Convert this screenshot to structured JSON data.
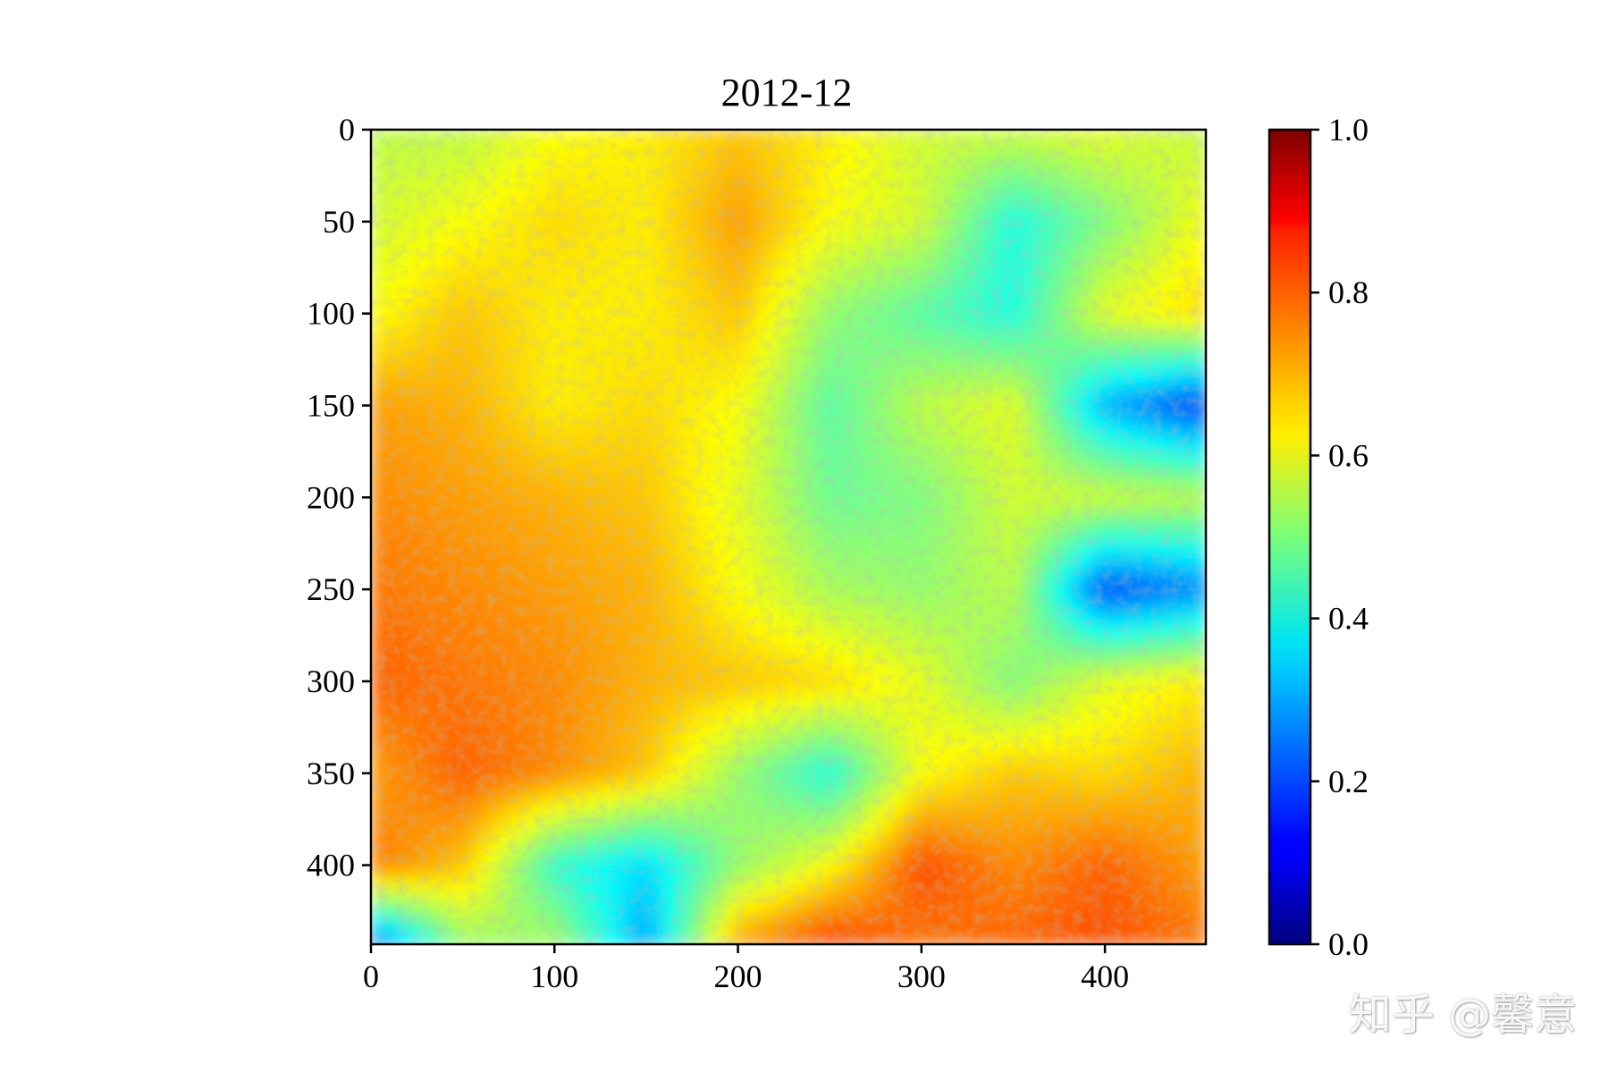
{
  "chart_data": {
    "type": "heatmap",
    "title": "2012-12",
    "xlabel": "",
    "ylabel": "",
    "colormap": "jet",
    "xlim": [
      0,
      455
    ],
    "ylim": [
      443,
      0
    ],
    "x_ticks": [
      0,
      100,
      200,
      300,
      400
    ],
    "y_ticks": [
      0,
      50,
      100,
      150,
      200,
      250,
      300,
      350,
      400
    ],
    "colorbar": {
      "vmin": 0.0,
      "vmax": 1.0,
      "ticks": [
        "0.0",
        "0.2",
        "0.4",
        "0.6",
        "0.8",
        "1.0"
      ]
    },
    "z_approx_grid": {
      "rows_y": [
        0,
        50,
        100,
        150,
        200,
        250,
        300,
        350,
        400,
        443
      ],
      "cols_x": [
        0,
        50,
        100,
        150,
        200,
        250,
        300,
        350,
        400,
        455
      ],
      "values": [
        [
          0.56,
          0.56,
          0.62,
          0.64,
          0.68,
          0.64,
          0.58,
          0.58,
          0.6,
          0.56
        ],
        [
          0.58,
          0.62,
          0.66,
          0.64,
          0.72,
          0.62,
          0.58,
          0.4,
          0.5,
          0.62
        ],
        [
          0.62,
          0.68,
          0.64,
          0.64,
          0.68,
          0.52,
          0.46,
          0.4,
          0.6,
          0.66
        ],
        [
          0.72,
          0.7,
          0.64,
          0.66,
          0.62,
          0.46,
          0.56,
          0.6,
          0.3,
          0.18
        ],
        [
          0.74,
          0.72,
          0.7,
          0.68,
          0.6,
          0.48,
          0.5,
          0.58,
          0.58,
          0.56
        ],
        [
          0.76,
          0.74,
          0.72,
          0.7,
          0.62,
          0.54,
          0.52,
          0.56,
          0.2,
          0.26
        ],
        [
          0.78,
          0.76,
          0.74,
          0.7,
          0.68,
          0.66,
          0.6,
          0.5,
          0.6,
          0.64
        ],
        [
          0.72,
          0.78,
          0.74,
          0.68,
          0.52,
          0.4,
          0.62,
          0.68,
          0.66,
          0.7
        ],
        [
          0.76,
          0.68,
          0.42,
          0.34,
          0.52,
          0.62,
          0.8,
          0.74,
          0.78,
          0.72
        ],
        [
          0.2,
          0.52,
          0.54,
          0.28,
          0.72,
          0.82,
          0.76,
          0.78,
          0.8,
          0.76
        ]
      ]
    }
  },
  "watermark": "知乎 @馨意"
}
